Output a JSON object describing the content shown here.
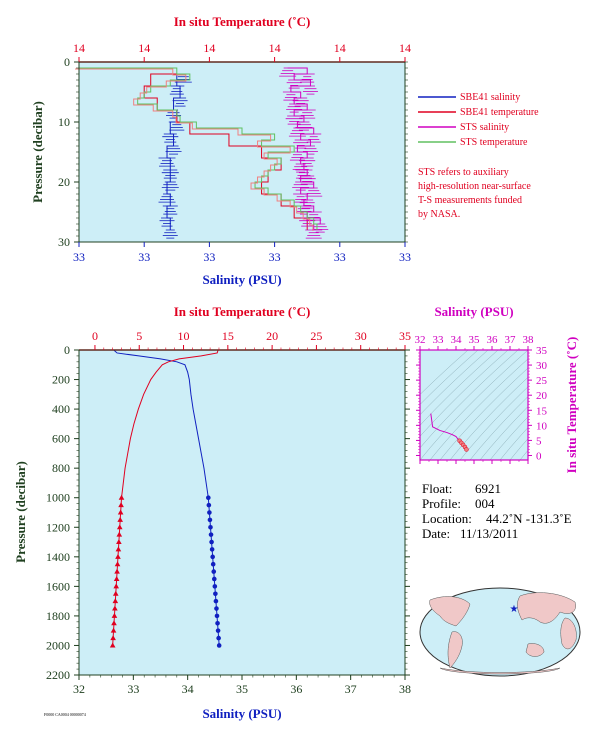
{
  "colors": {
    "plot_bg": "#cdeef7",
    "salinity": "#1020c0",
    "temperature": "#e00020",
    "sts_salinity": "#d000c0",
    "sts_temperature": "#60c060",
    "sts_temperature_alt": "#f08080",
    "axis_green": "#204020"
  },
  "top_panel": {
    "top_axis_title": "In situ Temperature (˚C)",
    "top_ticks": [
      "14",
      "14",
      "14",
      "14",
      "14",
      "14"
    ],
    "left_axis_title": "Pressure (decibar)",
    "left_ticks": [
      "0",
      "10",
      "20",
      "30"
    ],
    "bottom_axis_title": "Salinity (PSU)",
    "bottom_ticks": [
      "33",
      "33",
      "33",
      "33",
      "33",
      "33"
    ],
    "legend": [
      {
        "label": "SBE41 salinity",
        "color": "#1020c0"
      },
      {
        "label": "SBE41 temperature",
        "color": "#e00020"
      },
      {
        "label": "STS salinity",
        "color": "#d000c0"
      },
      {
        "label": "STS temperature",
        "color": "#60c060"
      }
    ],
    "note_lines": [
      "STS refers to auxiliary",
      "high-resolution near-surface",
      "T-S measurements funded",
      "by NASA."
    ]
  },
  "bottom_panel": {
    "top_axis_title": "In situ Temperature (˚C)",
    "top_ticks": [
      "0",
      "5",
      "10",
      "15",
      "20",
      "25",
      "30",
      "35"
    ],
    "left_axis_title": "Pressure (decibar)",
    "left_ticks": [
      "0",
      "200",
      "400",
      "600",
      "800",
      "1000",
      "1200",
      "1400",
      "1600",
      "1800",
      "2000",
      "2200"
    ],
    "bottom_axis_title": "Salinity (PSU)",
    "bottom_ticks": [
      "32",
      "33",
      "34",
      "35",
      "36",
      "37",
      "38"
    ]
  },
  "ts_panel": {
    "top_axis_title": "Salinity (PSU)",
    "top_ticks": [
      "32",
      "33",
      "34",
      "35",
      "36",
      "37",
      "38"
    ],
    "right_axis_title": "In situ Temperature (˚C)",
    "right_ticks": [
      "0",
      "5",
      "10",
      "15",
      "20",
      "25",
      "30",
      "35"
    ]
  },
  "info": {
    "float_label": "Float:",
    "float_value": "6921",
    "profile_label": "Profile:",
    "profile_value": "004",
    "location_label": "Location:",
    "location_value": "44.2˚N  -131.3˚E",
    "date_label": "Date:",
    "date_value": "11/13/2011"
  },
  "footer_code": "F0000 CA0004 00000074",
  "chart_data": [
    {
      "type": "line",
      "name": "top_near_surface",
      "x_axis_bottom": "Salinity (PSU)",
      "x_axis_top": "In situ Temperature (˚C)",
      "y_axis": "Pressure (decibar)",
      "ylim": [
        30,
        0
      ],
      "series": [
        {
          "name": "SBE41 salinity",
          "pressure": [
            2,
            4,
            6,
            8,
            10,
            12,
            14,
            16,
            18,
            20,
            22,
            24,
            26,
            28
          ],
          "x_frac": [
            0.32,
            0.3,
            0.31,
            0.29,
            0.3,
            0.28,
            0.29,
            0.27,
            0.28,
            0.28,
            0.27,
            0.28,
            0.27,
            0.28
          ]
        },
        {
          "name": "SBE41 temperature",
          "pressure": [
            2,
            4,
            6,
            8,
            10,
            12,
            14,
            16,
            18,
            20,
            22,
            24,
            26,
            28
          ],
          "x_frac": [
            0.3,
            0.22,
            0.2,
            0.24,
            0.3,
            0.34,
            0.46,
            0.56,
            0.62,
            0.58,
            0.56,
            0.62,
            0.66,
            0.7
          ]
        },
        {
          "name": "STS salinity",
          "pressure": [
            1,
            2,
            3,
            4,
            5,
            6,
            7,
            8,
            9,
            10,
            11,
            12,
            13,
            14,
            15,
            16,
            17,
            18,
            19,
            20,
            21,
            22,
            23,
            24,
            25,
            26,
            27,
            28
          ],
          "x_frac": [
            0.64,
            0.7,
            0.66,
            0.71,
            0.65,
            0.68,
            0.66,
            0.7,
            0.66,
            0.69,
            0.67,
            0.72,
            0.68,
            0.71,
            0.67,
            0.7,
            0.68,
            0.69,
            0.7,
            0.68,
            0.72,
            0.68,
            0.7,
            0.69,
            0.72,
            0.7,
            0.74,
            0.72
          ]
        },
        {
          "name": "STS temperature",
          "pressure": [
            1,
            2,
            3,
            4,
            5,
            6,
            7,
            8,
            9,
            10,
            11,
            12,
            13,
            14,
            15,
            16,
            17,
            18,
            19,
            20,
            21,
            22,
            23,
            24,
            25,
            26,
            27,
            28
          ],
          "x_frac": [
            0.0,
            0.3,
            0.34,
            0.28,
            0.22,
            0.2,
            0.18,
            0.24,
            0.3,
            0.31,
            0.36,
            0.5,
            0.6,
            0.56,
            0.66,
            0.58,
            0.62,
            0.6,
            0.58,
            0.56,
            0.54,
            0.58,
            0.62,
            0.66,
            0.68,
            0.7,
            0.72,
            0.73
          ]
        }
      ]
    },
    {
      "type": "line",
      "name": "full_profile",
      "x_axis_bottom": "Salinity (PSU)",
      "x_axis_top": "In situ Temperature (˚C)",
      "y_axis": "Pressure (decibar)",
      "xlim_salinity": [
        32,
        38
      ],
      "xlim_temperature": [
        0,
        35
      ],
      "ylim": [
        2200,
        0
      ],
      "series": [
        {
          "name": "Salinity",
          "pressure": [
            0,
            20,
            40,
            60,
            80,
            100,
            150,
            200,
            300,
            400,
            500,
            600,
            700,
            800,
            900,
            1000
          ],
          "values": [
            32.64,
            32.7,
            33.1,
            33.5,
            33.8,
            33.95,
            34.0,
            34.03,
            34.06,
            34.1,
            34.15,
            34.2,
            34.25,
            34.3,
            34.34,
            34.38
          ]
        },
        {
          "name": "Salinity (bottle points)",
          "pressure": [
            1000,
            1050,
            1100,
            1150,
            1200,
            1250,
            1300,
            1350,
            1400,
            1450,
            1500,
            1550,
            1600,
            1650,
            1700,
            1750,
            1800,
            1850,
            1900,
            1950,
            2000
          ],
          "values": [
            34.38,
            34.39,
            34.4,
            34.41,
            34.42,
            34.43,
            34.44,
            34.45,
            34.46,
            34.47,
            34.48,
            34.49,
            34.5,
            34.51,
            34.52,
            34.53,
            34.54,
            34.55,
            34.56,
            34.57,
            34.58
          ]
        },
        {
          "name": "Temperature",
          "pressure": [
            0,
            20,
            40,
            60,
            80,
            100,
            150,
            200,
            300,
            400,
            500,
            600,
            700,
            800,
            900,
            1000
          ],
          "values": [
            13.9,
            13.8,
            12.0,
            9.5,
            8.3,
            7.6,
            6.9,
            6.3,
            5.5,
            4.9,
            4.4,
            4.0,
            3.7,
            3.4,
            3.2,
            3.0
          ]
        },
        {
          "name": "Temperature (bottle points)",
          "pressure": [
            1000,
            1050,
            1100,
            1150,
            1200,
            1250,
            1300,
            1350,
            1400,
            1450,
            1500,
            1550,
            1600,
            1650,
            1700,
            1750,
            1800,
            1850,
            1900,
            1950,
            2000
          ],
          "values": [
            3.0,
            2.95,
            2.9,
            2.85,
            2.8,
            2.75,
            2.7,
            2.65,
            2.6,
            2.55,
            2.5,
            2.45,
            2.4,
            2.35,
            2.3,
            2.25,
            2.2,
            2.15,
            2.1,
            2.05,
            2.0
          ]
        }
      ]
    },
    {
      "type": "scatter",
      "name": "ts_diagram",
      "xlim": [
        32,
        38
      ],
      "ylim": [
        0,
        35
      ],
      "series": [
        {
          "name": "T-S",
          "salinity": [
            32.6,
            32.7,
            33.1,
            33.5,
            33.8,
            34.0,
            34.1,
            34.2,
            34.3,
            34.4,
            34.5,
            34.58
          ],
          "temperature": [
            13.9,
            9.5,
            8.3,
            7.6,
            6.9,
            6.3,
            5.5,
            4.9,
            4.2,
            3.5,
            2.8,
            2.0
          ]
        }
      ]
    }
  ]
}
